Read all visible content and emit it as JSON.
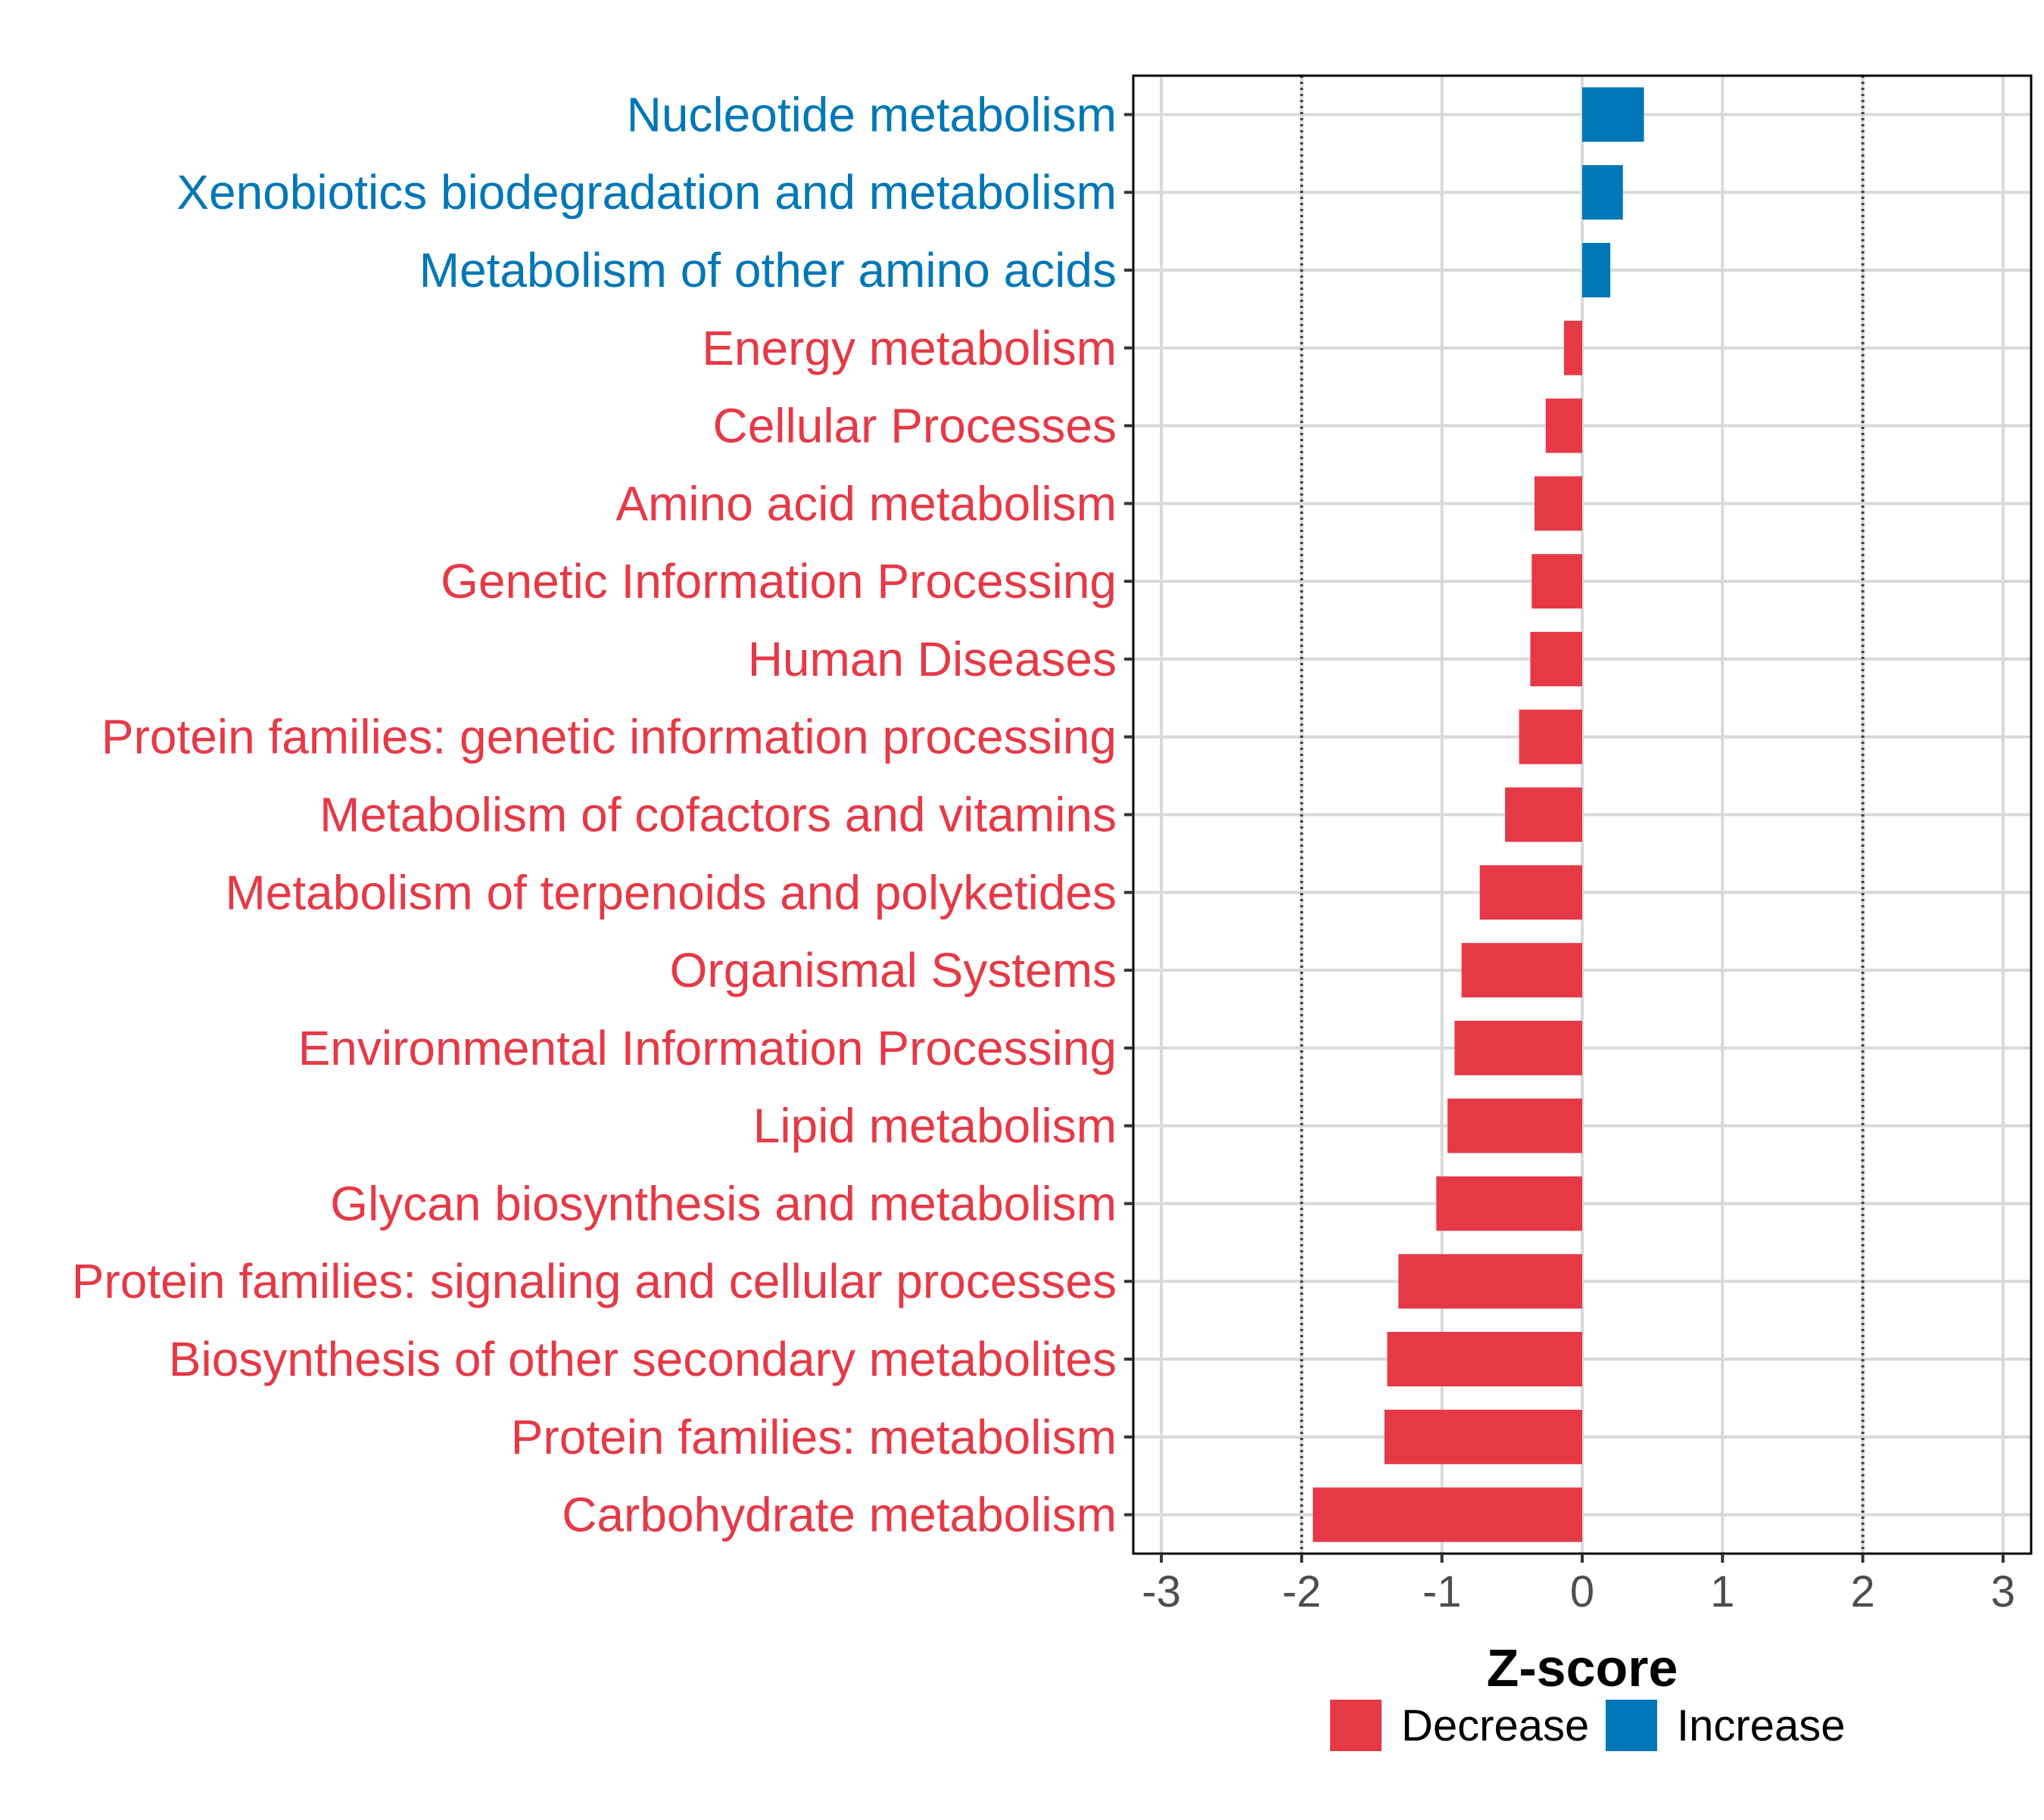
{
  "chart_data": {
    "type": "bar",
    "orientation": "horizontal",
    "title": "",
    "xlabel": "Z-score",
    "ylabel": "",
    "xlim": [
      -3.2,
      3.2
    ],
    "xticks": [
      -3,
      -2,
      -1,
      0,
      1,
      2,
      3
    ],
    "xtick_labels": [
      "-3",
      "-2",
      "-1",
      "0",
      "1",
      "2",
      "3"
    ],
    "reference_lines": [
      -2,
      2
    ],
    "grid": true,
    "legend_position": "bottom",
    "colors": {
      "Decrease": "#E63946",
      "Increase": "#0077B6"
    },
    "categories": [
      "Nucleotide metabolism",
      "Xenobiotics biodegradation and metabolism",
      "Metabolism of other amino acids",
      "Energy metabolism",
      "Cellular Processes",
      "Amino acid metabolism",
      "Genetic Information Processing",
      "Human Diseases",
      "Protein families: genetic information processing",
      "Metabolism of cofactors and vitamins",
      "Metabolism of terpenoids and polyketides",
      "Organismal Systems",
      "Environmental Information Processing",
      "Lipid metabolism",
      "Glycan biosynthesis and metabolism",
      "Protein families: signaling and cellular processes",
      "Biosynthesis of other secondary metabolites",
      "Protein families: metabolism",
      "Carbohydrate metabolism"
    ],
    "values": [
      0.44,
      0.29,
      0.2,
      -0.13,
      -0.26,
      -0.34,
      -0.36,
      -0.37,
      -0.45,
      -0.55,
      -0.73,
      -0.86,
      -0.91,
      -0.96,
      -1.04,
      -1.31,
      -1.39,
      -1.41,
      -1.92
    ],
    "groups": [
      "Increase",
      "Increase",
      "Increase",
      "Decrease",
      "Decrease",
      "Decrease",
      "Decrease",
      "Decrease",
      "Decrease",
      "Decrease",
      "Decrease",
      "Decrease",
      "Decrease",
      "Decrease",
      "Decrease",
      "Decrease",
      "Decrease",
      "Decrease",
      "Decrease"
    ],
    "legend": [
      "Decrease",
      "Increase"
    ]
  }
}
